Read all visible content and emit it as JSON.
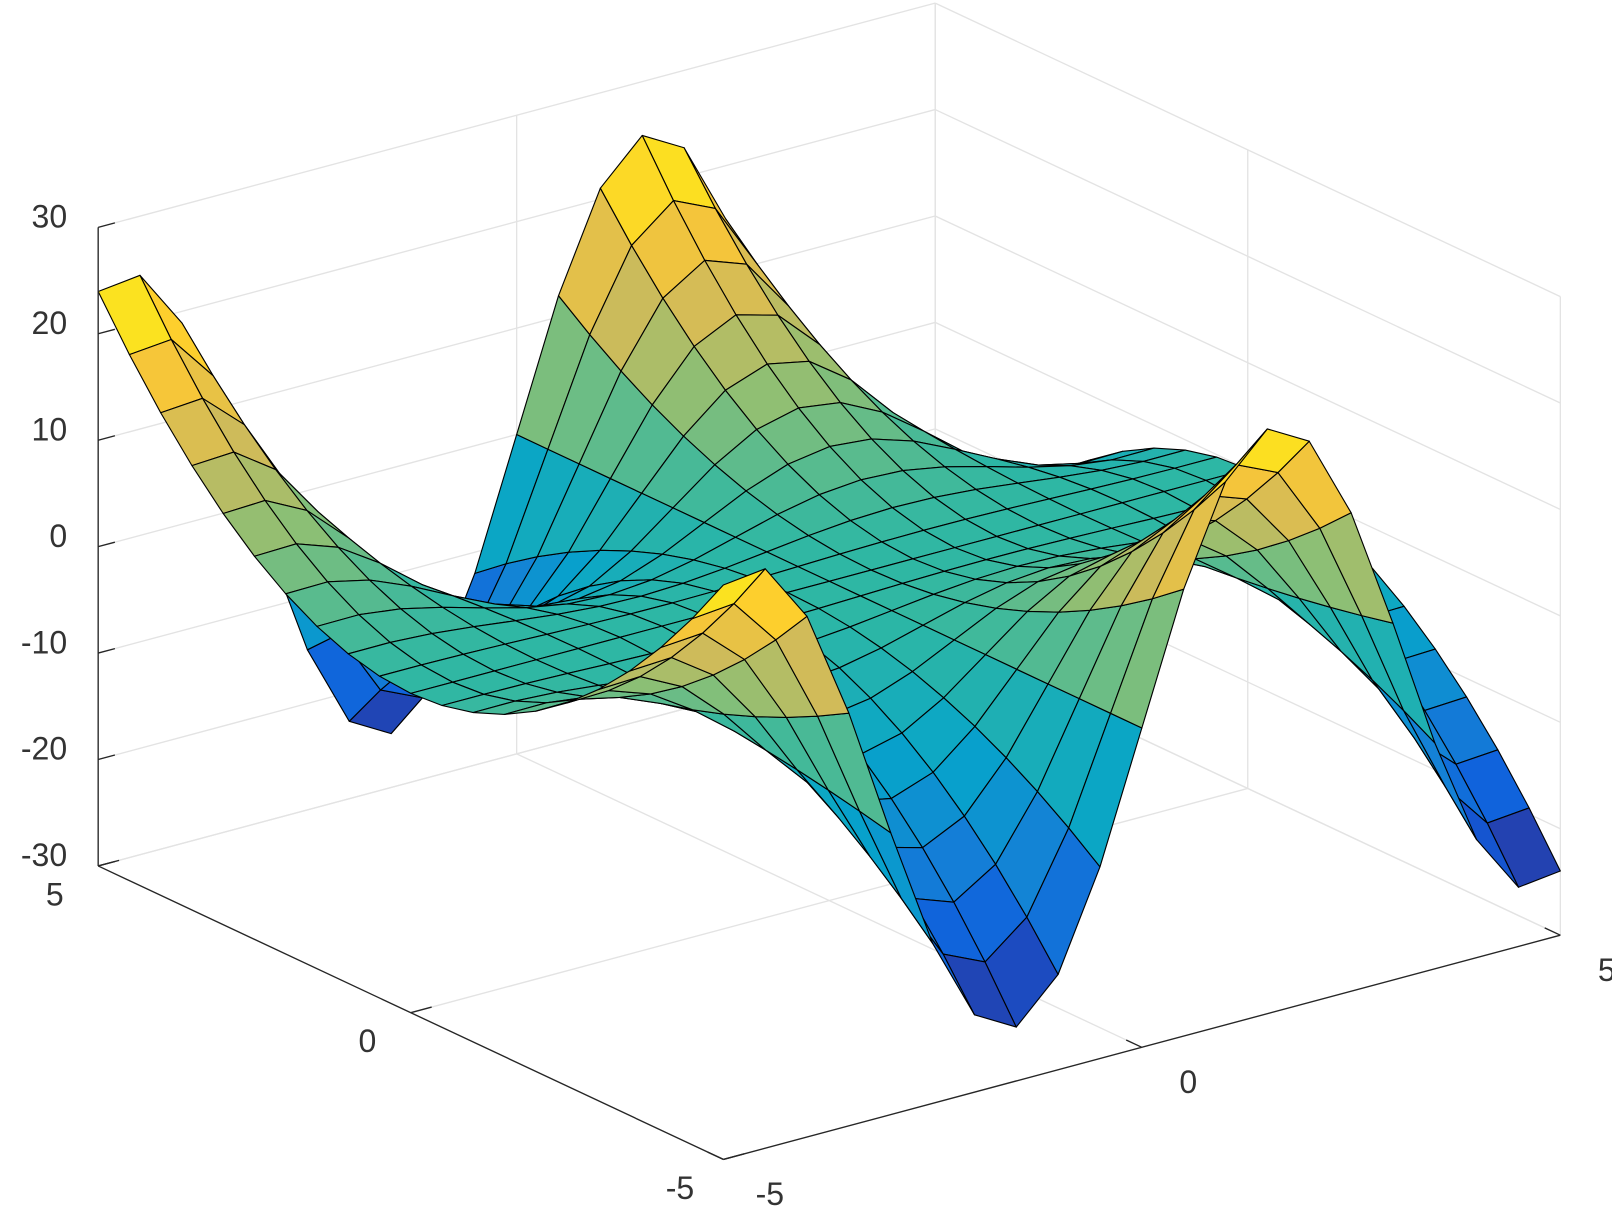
{
  "chart_data": {
    "type": "surface",
    "x": [
      -5,
      -4.5,
      -4,
      -3.5,
      -3,
      -2.5,
      -2,
      -1.5,
      -1,
      -0.5,
      0,
      0.5,
      1,
      1.5,
      2,
      2.5,
      3,
      3.5,
      4,
      4.5,
      5
    ],
    "y": [
      -5,
      -4.5,
      -4,
      -3.5,
      -3,
      -2.5,
      -2,
      -1.5,
      -1,
      -0.5,
      0,
      0.5,
      1,
      1.5,
      2,
      2.5,
      3,
      3.5,
      4,
      4.5,
      5
    ],
    "z": [
      [
        23.97,
        24.44,
        18.92,
        8.77,
        -3.53,
        -14.96,
        -22.73,
        -24.94,
        -21.04,
        -11.99,
        0,
        11.99,
        21.04,
        24.94,
        22.73,
        14.96,
        3.53,
        -8.77,
        -18.92,
        -24.44,
        -23.97
      ],
      [
        19.42,
        19.79,
        15.33,
        7.1,
        -2.86,
        -12.12,
        -18.41,
        -20.2,
        -17.04,
        -9.71,
        0,
        9.71,
        17.04,
        20.2,
        18.41,
        12.12,
        2.86,
        -7.1,
        -15.33,
        -19.79,
        -19.42
      ],
      [
        15.34,
        15.64,
        12.11,
        5.61,
        -2.26,
        -9.58,
        -14.55,
        -15.96,
        -13.46,
        -7.67,
        0,
        7.67,
        13.46,
        15.96,
        14.55,
        9.58,
        2.26,
        -5.61,
        -12.11,
        -15.64,
        -15.34
      ],
      [
        11.75,
        11.97,
        9.27,
        4.3,
        -1.73,
        -7.33,
        -11.14,
        -12.22,
        -10.31,
        -5.87,
        0,
        5.87,
        10.31,
        12.22,
        11.14,
        7.33,
        1.73,
        -4.3,
        -9.27,
        -11.97,
        -11.75
      ],
      [
        8.63,
        8.8,
        6.81,
        3.16,
        -1.27,
        -5.39,
        -8.18,
        -8.98,
        -7.57,
        -4.31,
        0,
        4.31,
        7.57,
        8.98,
        8.18,
        5.39,
        1.27,
        -3.16,
        -6.81,
        -8.8,
        -8.63
      ],
      [
        5.99,
        6.11,
        4.73,
        2.19,
        -0.88,
        -3.74,
        -5.68,
        -6.23,
        -5.26,
        -3,
        0,
        3,
        5.26,
        6.23,
        5.68,
        3.74,
        0.88,
        -2.19,
        -4.73,
        -6.11,
        -5.99
      ],
      [
        3.84,
        3.91,
        3.03,
        1.4,
        -0.56,
        -2.39,
        -3.64,
        -3.99,
        -3.37,
        -1.92,
        0,
        1.92,
        3.37,
        3.99,
        3.64,
        2.39,
        0.56,
        -1.4,
        -3.03,
        -3.91,
        -3.84
      ],
      [
        2.16,
        2.2,
        1.7,
        0.79,
        -0.32,
        -1.35,
        -2.05,
        -2.24,
        -1.89,
        -1.08,
        0,
        1.08,
        1.89,
        2.24,
        2.05,
        1.35,
        0.32,
        -0.79,
        -1.7,
        -2.2,
        -2.16
      ],
      [
        0.96,
        0.98,
        0.76,
        0.35,
        -0.14,
        -0.6,
        -0.91,
        -1,
        -0.84,
        -0.48,
        0,
        0.48,
        0.84,
        1,
        0.91,
        0.6,
        0.14,
        -0.35,
        -0.76,
        -0.98,
        -0.96
      ],
      [
        0.24,
        0.24,
        0.19,
        0.09,
        -0.04,
        -0.15,
        -0.23,
        -0.25,
        -0.21,
        -0.12,
        0,
        0.12,
        0.21,
        0.25,
        0.23,
        0.15,
        0.04,
        -0.09,
        -0.19,
        -0.24,
        -0.24
      ],
      [
        0,
        0,
        0,
        0,
        0,
        0,
        0,
        0,
        0,
        0,
        0,
        0,
        0,
        0,
        0,
        0,
        0,
        0,
        0,
        0,
        0
      ],
      [
        0.24,
        0.24,
        0.19,
        0.09,
        -0.04,
        -0.15,
        -0.23,
        -0.25,
        -0.21,
        -0.12,
        0,
        0.12,
        0.21,
        0.25,
        0.23,
        0.15,
        0.04,
        -0.09,
        -0.19,
        -0.24,
        -0.24
      ],
      [
        0.96,
        0.98,
        0.76,
        0.35,
        -0.14,
        -0.6,
        -0.91,
        -1,
        -0.84,
        -0.48,
        0,
        0.48,
        0.84,
        1,
        0.91,
        0.6,
        0.14,
        -0.35,
        -0.76,
        -0.98,
        -0.96
      ],
      [
        2.16,
        2.2,
        1.7,
        0.79,
        -0.32,
        -1.35,
        -2.05,
        -2.24,
        -1.89,
        -1.08,
        0,
        1.08,
        1.89,
        2.24,
        2.05,
        1.35,
        0.32,
        -0.79,
        -1.7,
        -2.2,
        -2.16
      ],
      [
        3.84,
        3.91,
        3.03,
        1.4,
        -0.56,
        -2.39,
        -3.64,
        -3.99,
        -3.37,
        -1.92,
        0,
        1.92,
        3.37,
        3.99,
        3.64,
        2.39,
        0.56,
        -1.4,
        -3.03,
        -3.91,
        -3.84
      ],
      [
        5.99,
        6.11,
        4.73,
        2.19,
        -0.88,
        -3.74,
        -5.68,
        -6.23,
        -5.26,
        -3,
        0,
        3,
        5.26,
        6.23,
        5.68,
        3.74,
        0.88,
        -2.19,
        -4.73,
        -6.11,
        -5.99
      ],
      [
        8.63,
        8.8,
        6.81,
        3.16,
        -1.27,
        -5.39,
        -8.18,
        -8.98,
        -7.57,
        -4.31,
        0,
        4.31,
        7.57,
        8.98,
        8.18,
        5.39,
        1.27,
        -3.16,
        -6.81,
        -8.8,
        -8.63
      ],
      [
        11.75,
        11.97,
        9.27,
        4.3,
        -1.73,
        -7.33,
        -11.14,
        -12.22,
        -10.31,
        -5.87,
        0,
        5.87,
        10.31,
        12.22,
        11.14,
        7.33,
        1.73,
        -4.3,
        -9.27,
        -11.97,
        -11.75
      ],
      [
        15.34,
        15.64,
        12.11,
        5.61,
        -2.26,
        -9.58,
        -14.55,
        -15.96,
        -13.46,
        -7.67,
        0,
        7.67,
        13.46,
        15.96,
        14.55,
        9.58,
        2.26,
        -5.61,
        -12.11,
        -15.64,
        -15.34
      ],
      [
        19.42,
        19.79,
        15.33,
        7.1,
        -2.86,
        -12.12,
        -18.41,
        -20.2,
        -17.04,
        -9.71,
        0,
        9.71,
        17.04,
        20.2,
        18.41,
        12.12,
        2.86,
        -7.1,
        -15.33,
        -19.79,
        -19.42
      ],
      [
        23.97,
        24.44,
        18.92,
        8.77,
        -3.53,
        -14.96,
        -22.73,
        -24.94,
        -21.04,
        -11.99,
        0,
        11.99,
        21.04,
        24.94,
        22.73,
        14.96,
        3.53,
        -8.77,
        -18.92,
        -24.44,
        -23.97
      ]
    ],
    "xlim": [
      -5,
      5
    ],
    "ylim": [
      -5,
      5
    ],
    "zlim": [
      -30,
      30
    ],
    "xticks": [
      -5,
      0,
      5
    ],
    "yticks": [
      -5,
      0,
      5
    ],
    "zticks": [
      -30,
      -20,
      -10,
      0,
      10,
      20,
      30
    ],
    "grid": true,
    "edge_color": "#000000",
    "colormap": [
      "#352a87",
      "#0f5cdd",
      "#1481d6",
      "#06a4ca",
      "#2eb7a4",
      "#87bf77",
      "#d1bb59",
      "#fec832",
      "#f9fb0e"
    ]
  }
}
